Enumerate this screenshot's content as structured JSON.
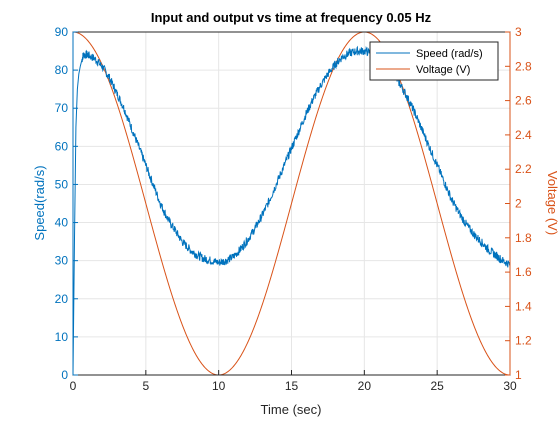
{
  "chart_data": {
    "type": "line",
    "title": "Input and output vs time at frequency 0.05 Hz",
    "xlabel": "Time (sec)",
    "ylabel_left": "Speed(rad/s)",
    "ylabel_right": "Voltage (V)",
    "xlim": [
      0,
      30
    ],
    "ylim_left": [
      0,
      90
    ],
    "ylim_right": [
      1,
      3
    ],
    "x_ticks": [
      "0",
      "5",
      "10",
      "15",
      "20",
      "25",
      "30"
    ],
    "y_left_ticks": [
      "0",
      "10",
      "20",
      "30",
      "40",
      "50",
      "60",
      "70",
      "80",
      "90"
    ],
    "y_right_ticks": [
      "1",
      "1.2",
      "1.4",
      "1.6",
      "1.8",
      "2",
      "2.2",
      "2.4",
      "2.6",
      "2.8",
      "3"
    ],
    "grid": true,
    "legend_position": "top-right",
    "series": [
      {
        "name": "Speed (rad/s)",
        "axis": "left",
        "color": "#0072BD",
        "x": [
          0,
          0.1,
          0.2,
          0.3,
          0.4,
          0.5,
          0.7,
          1.0,
          1.5,
          2,
          2.5,
          3,
          3.5,
          4,
          4.5,
          5,
          5.5,
          6,
          6.5,
          7,
          7.5,
          8,
          8.5,
          9,
          9.5,
          10,
          10.5,
          11,
          11.5,
          12,
          12.5,
          13,
          13.5,
          14,
          14.5,
          15,
          15.5,
          16,
          16.5,
          17,
          17.5,
          18,
          18.5,
          19,
          19.5,
          20,
          20.5,
          21,
          21.5,
          22,
          22.5,
          23,
          23.5,
          24,
          24.5,
          25,
          25.5,
          26,
          26.5,
          27,
          27.5,
          28,
          28.5,
          29,
          29.5,
          30
        ],
        "values": [
          0,
          35,
          65,
          75,
          79,
          81,
          84,
          84,
          83,
          81,
          78,
          74,
          70,
          65,
          60,
          55,
          50,
          45,
          41,
          38,
          35,
          33,
          31.5,
          30.5,
          30,
          29.5,
          30,
          31,
          33,
          35.5,
          38.5,
          42,
          46,
          50.5,
          55,
          59.5,
          64,
          68.5,
          72.5,
          76,
          79,
          81.5,
          83.5,
          84.5,
          85,
          85,
          84.5,
          83.5,
          81.5,
          79,
          76,
          72.5,
          68.5,
          64,
          59.5,
          55,
          50.5,
          46,
          42.5,
          39.5,
          37,
          35,
          33,
          31.5,
          30,
          29
        ]
      },
      {
        "name": "Voltage (V)",
        "axis": "right",
        "color": "#D95319",
        "function": "2 + cos(2*pi*0.05*t)"
      }
    ]
  }
}
